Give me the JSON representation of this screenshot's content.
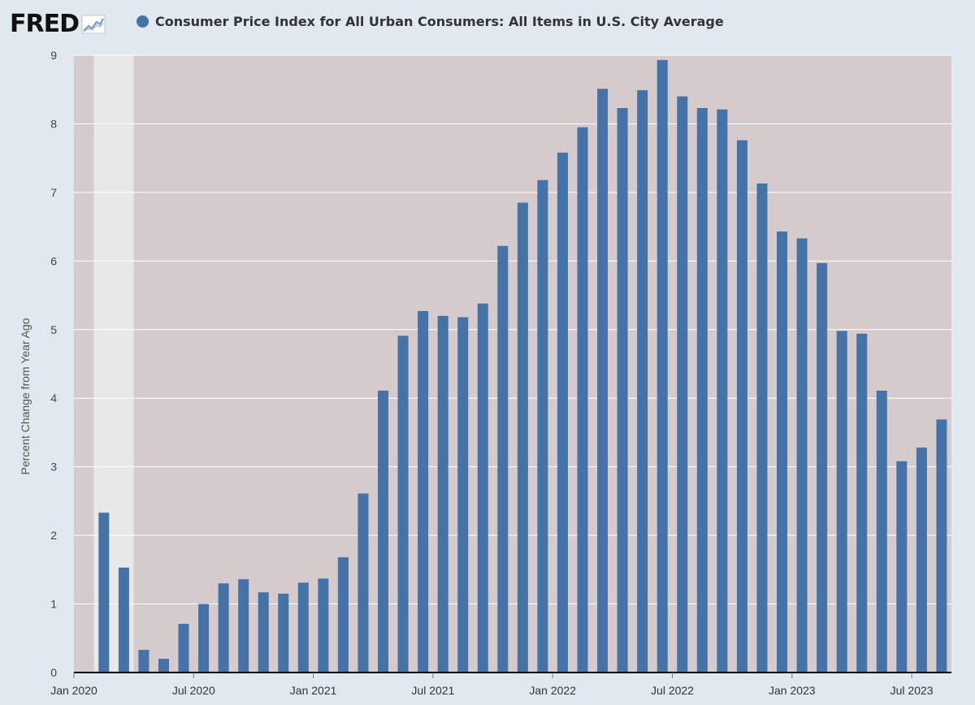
{
  "header": {
    "logo_text": "FRED",
    "logo_icon": "trend-line-icon",
    "series_title": "Consumer Price Index for All Urban Consumers: All Items in U.S. City Average"
  },
  "colors": {
    "page_background": "#e1e9f0",
    "plot_background": "#d6cbcc",
    "recession_band": "#e8e8e8",
    "bar": "#4572a7",
    "gridline": "#ffffff",
    "axis": "#000000"
  },
  "chart_data": {
    "type": "bar",
    "title": "Consumer Price Index for All Urban Consumers: All Items in U.S. City Average",
    "ylabel": "Percent Change from Year Ago",
    "xlabel": "",
    "ylim": [
      0,
      9
    ],
    "yticks": [
      0,
      1,
      2,
      3,
      4,
      5,
      6,
      7,
      8,
      9
    ],
    "grid": true,
    "x_tick_labels": [
      {
        "month": "2020-01",
        "label": "Jan 2020"
      },
      {
        "month": "2020-07",
        "label": "Jul 2020"
      },
      {
        "month": "2021-01",
        "label": "Jan 2021"
      },
      {
        "month": "2021-07",
        "label": "Jul 2021"
      },
      {
        "month": "2022-01",
        "label": "Jan 2022"
      },
      {
        "month": "2022-07",
        "label": "Jul 2022"
      },
      {
        "month": "2023-01",
        "label": "Jan 2023"
      },
      {
        "month": "2023-07",
        "label": "Jul 2023"
      }
    ],
    "x_range": [
      "2020-01",
      "2023-08"
    ],
    "recession": {
      "start": "2020-02",
      "end": "2020-04"
    },
    "series": [
      {
        "name": "Consumer Price Index for All Urban Consumers: All Items in U.S. City Average",
        "x": [
          "2020-02",
          "2020-03",
          "2020-04",
          "2020-05",
          "2020-06",
          "2020-07",
          "2020-08",
          "2020-09",
          "2020-10",
          "2020-11",
          "2020-12",
          "2021-01",
          "2021-02",
          "2021-03",
          "2021-04",
          "2021-05",
          "2021-06",
          "2021-07",
          "2021-08",
          "2021-09",
          "2021-10",
          "2021-11",
          "2021-12",
          "2022-01",
          "2022-02",
          "2022-03",
          "2022-04",
          "2022-05",
          "2022-06",
          "2022-07",
          "2022-08",
          "2022-09",
          "2022-10",
          "2022-11",
          "2022-12",
          "2023-01",
          "2023-02",
          "2023-03",
          "2023-04",
          "2023-05",
          "2023-06",
          "2023-07",
          "2023-08"
        ],
        "values": [
          2.33,
          1.53,
          0.33,
          0.2,
          0.71,
          1.0,
          1.3,
          1.36,
          1.17,
          1.15,
          1.31,
          1.37,
          1.68,
          2.61,
          4.11,
          4.91,
          5.27,
          5.2,
          5.18,
          5.38,
          6.22,
          6.85,
          7.18,
          7.58,
          7.95,
          8.51,
          8.23,
          8.49,
          8.93,
          8.4,
          8.23,
          8.21,
          7.76,
          7.13,
          6.43,
          6.33,
          5.97,
          4.98,
          4.94,
          4.11,
          3.08,
          3.28,
          3.69
        ]
      }
    ]
  }
}
